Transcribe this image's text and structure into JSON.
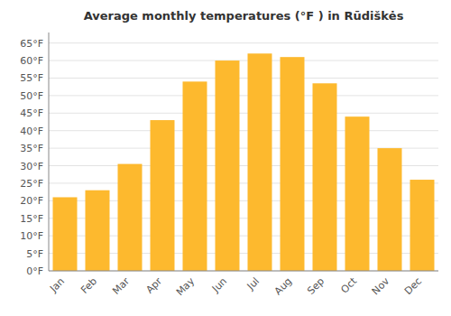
{
  "chart_data": {
    "type": "bar",
    "title": "Average monthly temperatures (°F ) in Rūdiškės",
    "categories": [
      "Jan",
      "Feb",
      "Mar",
      "Apr",
      "May",
      "Jun",
      "Jul",
      "Aug",
      "Sep",
      "Oct",
      "Nov",
      "Dec"
    ],
    "values": [
      21,
      23,
      30.5,
      43,
      54,
      60,
      62,
      61,
      53.5,
      44,
      35,
      26
    ],
    "color": "#FDB92E",
    "ylim": [
      0,
      68
    ],
    "yticks": [
      {
        "value": 0,
        "label": "0°F"
      },
      {
        "value": 5,
        "label": "5°F"
      },
      {
        "value": 10,
        "label": "10°F"
      },
      {
        "value": 15,
        "label": "15°F"
      },
      {
        "value": 20,
        "label": "20°F"
      },
      {
        "value": 25,
        "label": "25°F"
      },
      {
        "value": 30,
        "label": "30°F"
      },
      {
        "value": 35,
        "label": "35°F"
      },
      {
        "value": 40,
        "label": "40°F"
      },
      {
        "value": 45,
        "label": "45°F"
      },
      {
        "value": 50,
        "label": "50°F"
      },
      {
        "value": 55,
        "label": "55°F"
      },
      {
        "value": 60,
        "label": "60°F"
      },
      {
        "value": 65,
        "label": "65°F"
      }
    ],
    "grid": true
  }
}
